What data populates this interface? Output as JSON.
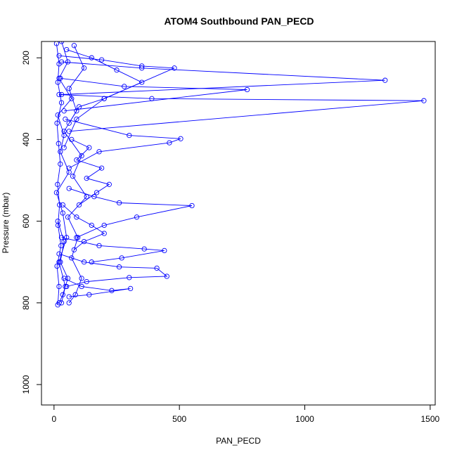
{
  "chart_data": {
    "type": "line",
    "title": "ATOM4 Southbound PAN_PECD",
    "xlabel": "PAN_PECD",
    "ylabel": "Pressure (mbar)",
    "xlim": [
      -50,
      1520
    ],
    "ylim": [
      1050,
      160
    ],
    "y_reversed": true,
    "grid": false,
    "markers": "open-circle",
    "line_color": "#0000ff",
    "x_ticks": [
      0,
      500,
      1000,
      1500
    ],
    "y_ticks": [
      200,
      400,
      600,
      800,
      1000
    ],
    "series": [
      {
        "x": [
          30,
          55,
          20,
          70,
          15,
          40,
          25,
          60,
          10,
          35,
          50,
          20,
          45,
          30
        ],
        "y": [
          160,
          210,
          250,
          300,
          340,
          390,
          430,
          480,
          530,
          580,
          640,
          700,
          760,
          800
        ]
      },
      {
        "x": [
          10,
          20,
          15,
          30,
          12,
          18,
          25,
          14,
          22,
          16,
          28,
          12,
          20,
          15
        ],
        "y": [
          165,
          215,
          260,
          310,
          360,
          410,
          460,
          510,
          560,
          610,
          660,
          710,
          760,
          805
        ]
      },
      {
        "x": [
          80,
          120,
          60,
          90,
          40,
          110,
          75,
          130,
          55,
          95,
          70,
          110,
          85,
          60
        ],
        "y": [
          170,
          225,
          275,
          330,
          380,
          440,
          490,
          540,
          590,
          640,
          690,
          740,
          780,
          800
        ]
      },
      {
        "x": [
          20,
          190,
          350,
          480,
          200,
          90,
          40
        ],
        "y": [
          195,
          205,
          220,
          225,
          300,
          350,
          420
        ]
      },
      {
        "x": [
          30,
          350,
          1320,
          30
        ],
        "y": [
          210,
          225,
          255,
          290
        ]
      },
      {
        "x": [
          25,
          280,
          770,
          40
        ],
        "y": [
          250,
          270,
          278,
          330
        ]
      },
      {
        "x": [
          20,
          390,
          1475,
          60
        ],
        "y": [
          290,
          300,
          305,
          380
        ]
      },
      {
        "x": [
          45,
          300,
          505,
          460,
          180,
          60
        ],
        "y": [
          350,
          390,
          398,
          408,
          430,
          470
        ]
      },
      {
        "x": [
          60,
          160,
          260,
          550,
          330,
          200,
          90
        ],
        "y": [
          520,
          540,
          555,
          562,
          590,
          610,
          640
        ]
      },
      {
        "x": [
          30,
          180,
          360,
          440,
          270,
          150
        ],
        "y": [
          640,
          660,
          668,
          672,
          690,
          700
        ]
      },
      {
        "x": [
          20,
          120,
          260,
          410,
          450,
          300,
          130,
          50
        ],
        "y": [
          680,
          700,
          712,
          715,
          735,
          738,
          748,
          760
        ]
      },
      {
        "x": [
          40,
          110,
          230,
          305,
          140,
          60
        ],
        "y": [
          740,
          760,
          770,
          765,
          780,
          785
        ]
      },
      {
        "x": [
          50,
          150,
          250,
          350,
          200,
          100,
          60
        ],
        "y": [
          180,
          200,
          230,
          260,
          300,
          320,
          360
        ]
      },
      {
        "x": [
          70,
          140,
          90,
          190,
          130,
          220,
          170,
          100
        ],
        "y": [
          400,
          420,
          450,
          470,
          495,
          510,
          530,
          560
        ]
      },
      {
        "x": [
          35,
          90,
          150,
          200,
          120,
          80
        ],
        "y": [
          560,
          590,
          610,
          630,
          650,
          670
        ]
      },
      {
        "x": [
          15,
          40,
          25,
          55,
          35,
          20
        ],
        "y": [
          600,
          650,
          700,
          740,
          780,
          800
        ]
      }
    ]
  }
}
